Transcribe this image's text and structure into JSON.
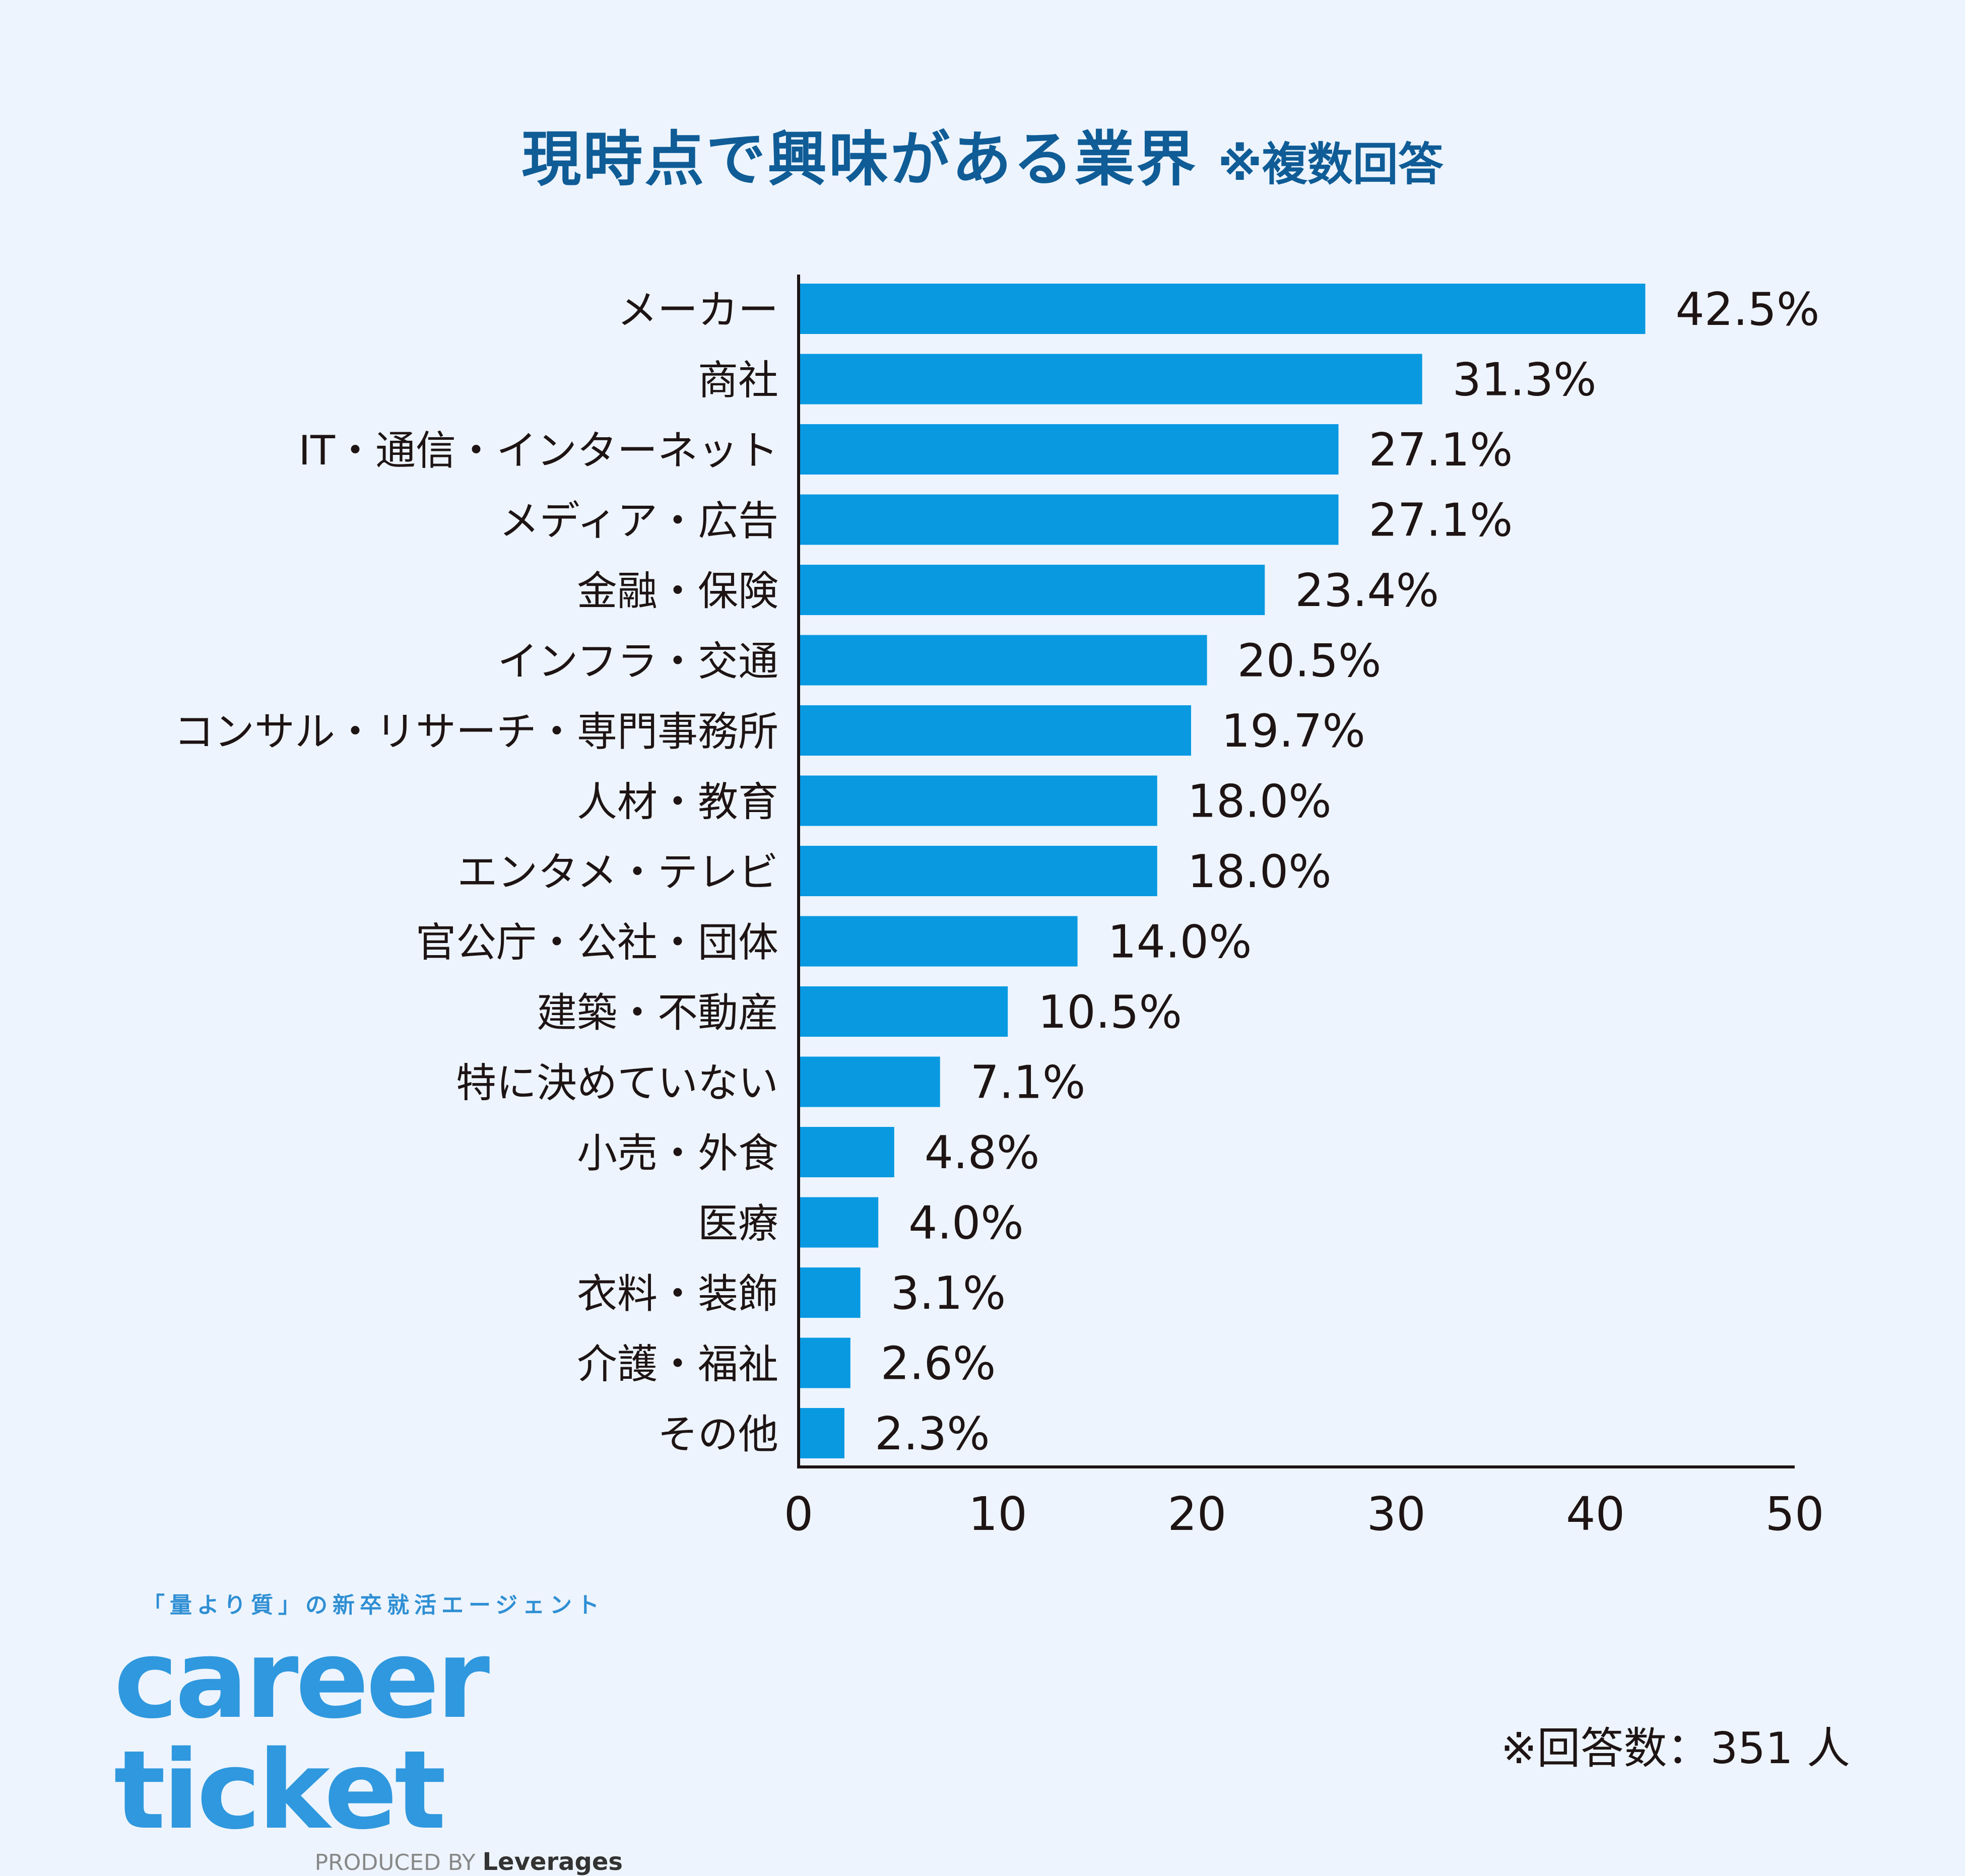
{
  "title": {
    "main": "現時点で興味がある業界",
    "note": "※複数回答"
  },
  "chart_data": {
    "type": "bar",
    "orientation": "horizontal",
    "categories": [
      "メーカー",
      "商社",
      "IT・通信・インターネット",
      "メディア・広告",
      "金融・保険",
      "インフラ・交通",
      "コンサル・リサーチ・専門事務所",
      "人材・教育",
      "エンタメ・テレビ",
      "官公庁・公社・団体",
      "建築・不動産",
      "特に決めていない",
      "小売・外食",
      "医療",
      "衣料・装飾",
      "介護・福祉",
      "その他"
    ],
    "values": [
      42.5,
      31.3,
      27.1,
      27.1,
      23.4,
      20.5,
      19.7,
      18.0,
      18.0,
      14.0,
      10.5,
      7.1,
      4.8,
      4.0,
      3.1,
      2.6,
      2.3
    ],
    "value_labels": [
      "42.5%",
      "31.3%",
      "27.1%",
      "27.1%",
      "23.4%",
      "20.5%",
      "19.7%",
      "18.0%",
      "18.0%",
      "14.0%",
      "10.5%",
      "7.1%",
      "4.8%",
      "4.0%",
      "3.1%",
      "2.6%",
      "2.3%"
    ],
    "xlim": [
      0,
      50
    ],
    "x_ticks": [
      0,
      10,
      20,
      30,
      40,
      50
    ],
    "grid": false,
    "bar_color": "#0899e1"
  },
  "footer": {
    "tagline": "「量より質」の新卒就活エージェント",
    "logo": "career ticket",
    "produced_by": "PRODUCED BY",
    "producer": "Leverages",
    "respondents": "※回答数：351 人"
  }
}
